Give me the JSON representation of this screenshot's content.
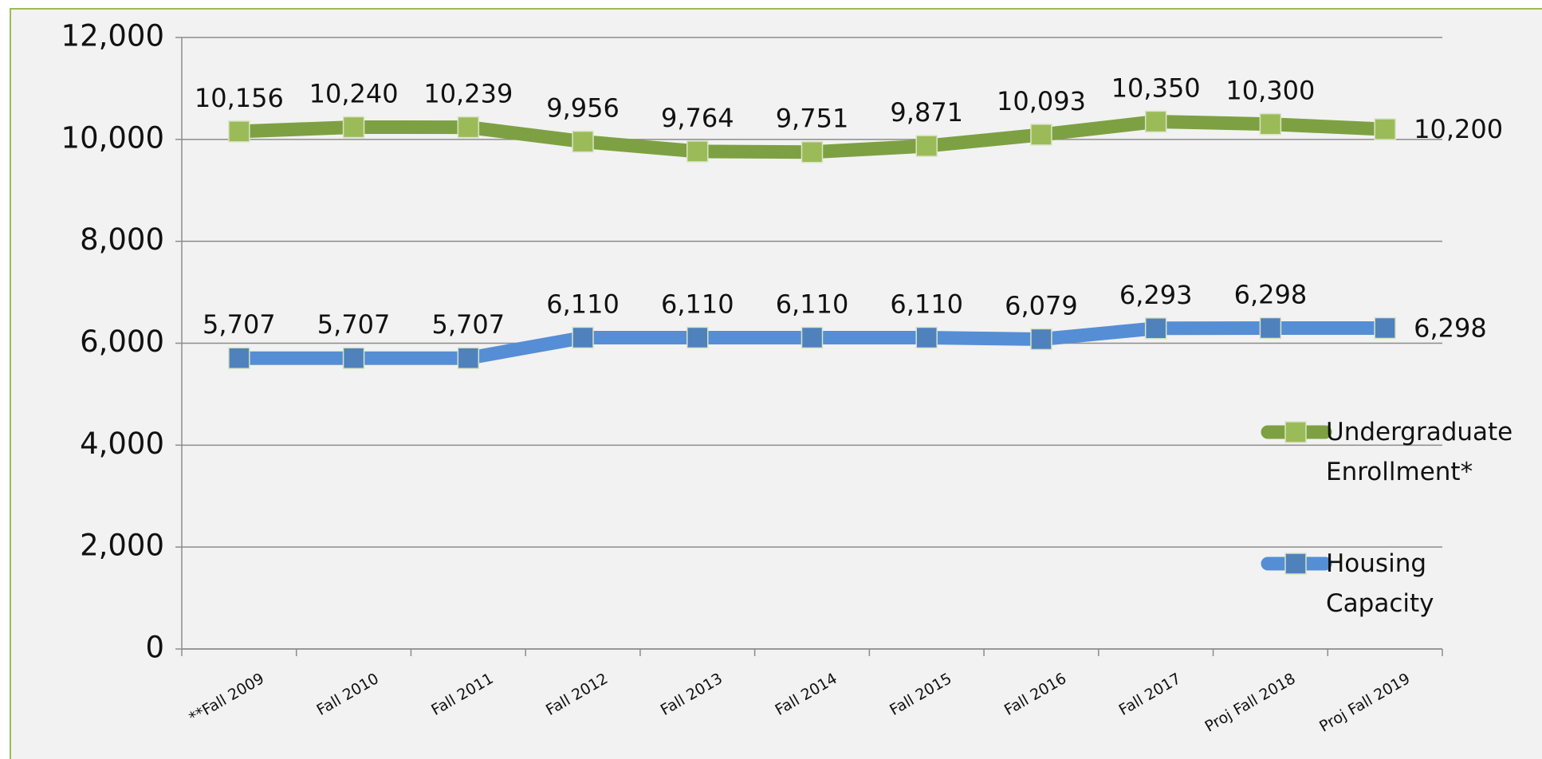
{
  "chart_data": {
    "type": "line",
    "categories": [
      "**Fall 2009",
      "Fall 2010",
      "Fall 2011",
      "Fall 2012",
      "Fall 2013",
      "Fall 2014",
      "Fall 2015",
      "Fall 2016",
      "Fall 2017",
      "Proj Fall 2018",
      "Proj Fall 2019"
    ],
    "series": [
      {
        "name": "Undergraduate Enrollment*",
        "color": "#7da142",
        "marker_color": "#9bbb59",
        "values": [
          10156,
          10240,
          10239,
          9956,
          9764,
          9751,
          9871,
          10093,
          10350,
          10300,
          10200
        ],
        "value_labels": [
          "10,156",
          "10,240",
          "10,239",
          "9,956",
          "9,764",
          "9,751",
          "9,871",
          "10,093",
          "10,350",
          "10,300",
          "10,200"
        ]
      },
      {
        "name": "Housing Capacity",
        "color": "#558ed5",
        "marker_color": "#4f81bd",
        "values": [
          5707,
          5707,
          5707,
          6110,
          6110,
          6110,
          6110,
          6079,
          6293,
          6298,
          6298
        ],
        "value_labels": [
          "5,707",
          "5,707",
          "5,707",
          "6,110",
          "6,110",
          "6,110",
          "6,110",
          "6,079",
          "6,293",
          "6,298",
          "6,298"
        ]
      }
    ],
    "ylim": [
      0,
      12000
    ],
    "yticks": [
      0,
      {
        "value": 2000,
        "label": "2,000"
      },
      {
        "value": 4000,
        "label": "4,000"
      },
      {
        "value": 6000,
        "label": "6,000"
      },
      {
        "value": 8000,
        "label": "8,000"
      },
      {
        "value": 10000,
        "label": "10,000"
      },
      {
        "value": 12000,
        "label": "12,000"
      }
    ],
    "grid": true,
    "legend": "right"
  }
}
